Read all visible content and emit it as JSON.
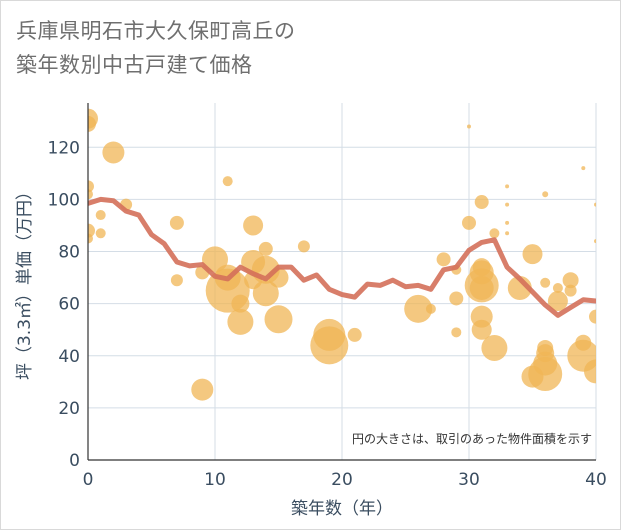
{
  "title": "兵庫県明石市大久保町高丘の\n築年数別中古戸建て価格",
  "colors": {
    "line": "#d4705a",
    "bubble": "#f0b556",
    "grid": "#d4dde6",
    "axis_text": "#3a4d60"
  },
  "chart_data": {
    "type": "scatter",
    "xlabel": "築年数（年）",
    "ylabel": "坪（3.3㎡）単価（万円）",
    "xlim": [
      0,
      40
    ],
    "ylim": [
      0,
      137
    ],
    "xticks": [
      0,
      10,
      20,
      30,
      40
    ],
    "yticks": [
      0,
      20,
      40,
      60,
      80,
      100,
      120
    ],
    "annotation": "円の大きさは、取引のあった物件面積を示す",
    "line": {
      "x": [
        0,
        1,
        2,
        3,
        4,
        5,
        6,
        7,
        8,
        9,
        10,
        11,
        12,
        13,
        14,
        15,
        16,
        17,
        18,
        19,
        20,
        21,
        22,
        23,
        24,
        25,
        26,
        27,
        28,
        29,
        30,
        31,
        32,
        33,
        34,
        35,
        36,
        37,
        38,
        39,
        40
      ],
      "y": [
        98.5,
        100,
        99.5,
        95.5,
        94,
        86.5,
        83,
        76,
        74.5,
        75,
        70.5,
        69.5,
        74,
        71.5,
        69.5,
        74,
        74,
        69,
        71,
        65.5,
        63.5,
        62.5,
        67.5,
        67,
        69,
        66.5,
        67,
        65.5,
        73,
        74,
        80.5,
        83.5,
        84.5,
        74,
        69.5,
        64.5,
        59.5,
        55.5,
        58.5,
        61.5,
        61
      ]
    },
    "points": [
      {
        "x": 0,
        "y": 131,
        "r": 10
      },
      {
        "x": 0,
        "y": 129,
        "r": 8
      },
      {
        "x": 0,
        "y": 105,
        "r": 6
      },
      {
        "x": 0,
        "y": 102,
        "r": 5
      },
      {
        "x": 0,
        "y": 88,
        "r": 7
      },
      {
        "x": 0,
        "y": 85,
        "r": 5
      },
      {
        "x": 1,
        "y": 94,
        "r": 5
      },
      {
        "x": 1,
        "y": 87,
        "r": 5
      },
      {
        "x": 2,
        "y": 118,
        "r": 11
      },
      {
        "x": 3,
        "y": 98,
        "r": 6
      },
      {
        "x": 7,
        "y": 91,
        "r": 7
      },
      {
        "x": 7,
        "y": 69,
        "r": 6
      },
      {
        "x": 9,
        "y": 72,
        "r": 7
      },
      {
        "x": 9,
        "y": 27,
        "r": 11
      },
      {
        "x": 10,
        "y": 77,
        "r": 13
      },
      {
        "x": 11,
        "y": 107,
        "r": 5
      },
      {
        "x": 11,
        "y": 70,
        "r": 13
      },
      {
        "x": 11,
        "y": 65,
        "r": 22
      },
      {
        "x": 12,
        "y": 60,
        "r": 9
      },
      {
        "x": 12,
        "y": 53,
        "r": 13
      },
      {
        "x": 13,
        "y": 90,
        "r": 10
      },
      {
        "x": 13,
        "y": 76,
        "r": 12
      },
      {
        "x": 13,
        "y": 69,
        "r": 9
      },
      {
        "x": 14,
        "y": 81,
        "r": 7
      },
      {
        "x": 14,
        "y": 73,
        "r": 14
      },
      {
        "x": 14,
        "y": 64,
        "r": 13
      },
      {
        "x": 15,
        "y": 70,
        "r": 10
      },
      {
        "x": 15,
        "y": 54,
        "r": 14
      },
      {
        "x": 17,
        "y": 82,
        "r": 6
      },
      {
        "x": 19,
        "y": 48,
        "r": 16
      },
      {
        "x": 19,
        "y": 44,
        "r": 19
      },
      {
        "x": 21,
        "y": 48,
        "r": 7
      },
      {
        "x": 26,
        "y": 58,
        "r": 14
      },
      {
        "x": 27,
        "y": 58,
        "r": 5
      },
      {
        "x": 28,
        "y": 77,
        "r": 7
      },
      {
        "x": 29,
        "y": 73,
        "r": 5
      },
      {
        "x": 29,
        "y": 62,
        "r": 7
      },
      {
        "x": 29,
        "y": 49,
        "r": 5
      },
      {
        "x": 30,
        "y": 128,
        "r": 2
      },
      {
        "x": 30,
        "y": 91,
        "r": 7
      },
      {
        "x": 31,
        "y": 99,
        "r": 7
      },
      {
        "x": 31,
        "y": 74,
        "r": 9
      },
      {
        "x": 31,
        "y": 72,
        "r": 12
      },
      {
        "x": 31,
        "y": 67,
        "r": 17
      },
      {
        "x": 31,
        "y": 66,
        "r": 12
      },
      {
        "x": 31,
        "y": 55,
        "r": 11
      },
      {
        "x": 31,
        "y": 50,
        "r": 10
      },
      {
        "x": 32,
        "y": 87,
        "r": 5
      },
      {
        "x": 32,
        "y": 43,
        "r": 13
      },
      {
        "x": 33,
        "y": 105,
        "r": 2
      },
      {
        "x": 33,
        "y": 98,
        "r": 2
      },
      {
        "x": 33,
        "y": 91,
        "r": 2
      },
      {
        "x": 33,
        "y": 87,
        "r": 2
      },
      {
        "x": 34,
        "y": 66,
        "r": 12
      },
      {
        "x": 35,
        "y": 79,
        "r": 10
      },
      {
        "x": 35,
        "y": 32,
        "r": 11
      },
      {
        "x": 36,
        "y": 102,
        "r": 3
      },
      {
        "x": 36,
        "y": 68,
        "r": 5
      },
      {
        "x": 36,
        "y": 43,
        "r": 8
      },
      {
        "x": 36,
        "y": 41,
        "r": 9
      },
      {
        "x": 36,
        "y": 37,
        "r": 12
      },
      {
        "x": 36,
        "y": 33,
        "r": 17
      },
      {
        "x": 37,
        "y": 66,
        "r": 5
      },
      {
        "x": 37,
        "y": 61,
        "r": 10
      },
      {
        "x": 38,
        "y": 69,
        "r": 8
      },
      {
        "x": 38,
        "y": 65,
        "r": 6
      },
      {
        "x": 39,
        "y": 112,
        "r": 2
      },
      {
        "x": 39,
        "y": 45,
        "r": 8
      },
      {
        "x": 39,
        "y": 40,
        "r": 16
      },
      {
        "x": 40,
        "y": 98,
        "r": 2
      },
      {
        "x": 40,
        "y": 84,
        "r": 2
      },
      {
        "x": 40,
        "y": 55,
        "r": 7
      },
      {
        "x": 40,
        "y": 34,
        "r": 12
      }
    ]
  }
}
